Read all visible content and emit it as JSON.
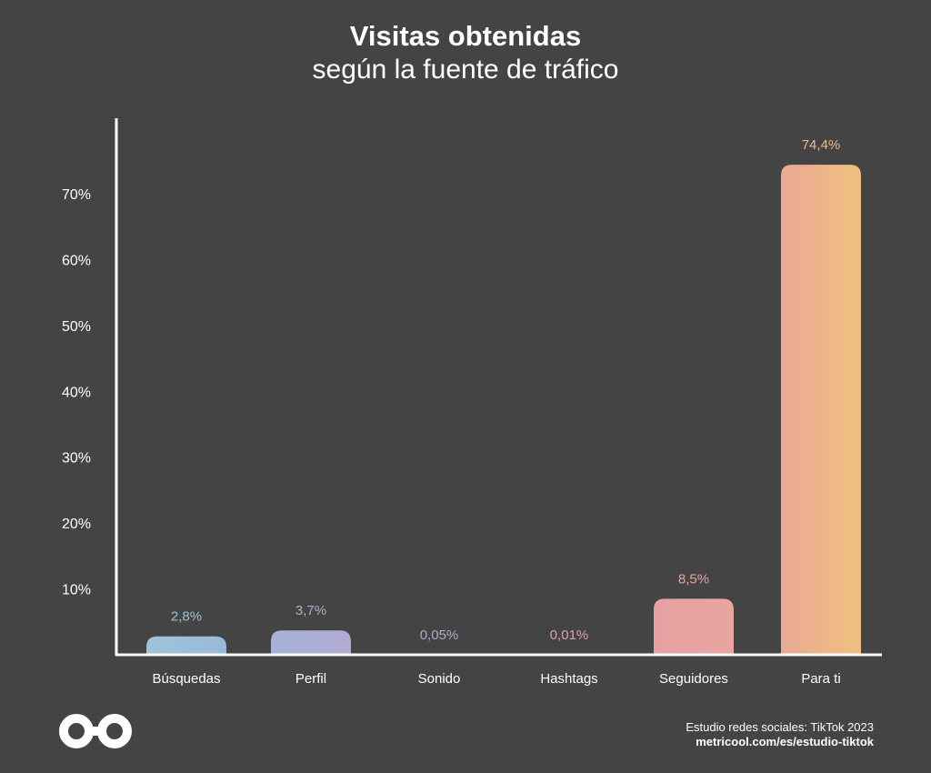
{
  "header": {
    "title": "Visitas obtenidas",
    "subtitle": "según la fuente de tráfico"
  },
  "footer": {
    "line1": "Estudio redes sociales: TikTok 2023",
    "line2": "metricool.com/es/estudio-tiktok"
  },
  "colors": {
    "background": "#444444",
    "axis": "#ffffff",
    "tick_text": "#ffffff"
  },
  "chart_data": {
    "type": "bar",
    "categories": [
      "Búsquedas",
      "Perfil",
      "Sonido",
      "Hashtags",
      "Seguidores",
      "Para ti"
    ],
    "values": [
      2.8,
      3.7,
      0.05,
      0.01,
      8.5,
      74.4
    ],
    "data_labels": [
      "2,8%",
      "3,7%",
      "0,05%",
      "0,01%",
      "8,5%",
      "74,4%"
    ],
    "bar_colors": [
      [
        "#9ec4db",
        "#9ab9d9"
      ],
      [
        "#a4b3d6",
        "#b3abd3"
      ],
      [
        "#b8a6cc",
        "#c3a3c8"
      ],
      [
        "#d19eb5",
        "#d69fb4"
      ],
      [
        "#e7a0a2",
        "#e9a5a0"
      ],
      [
        "#e9a994",
        "#f0c07e"
      ]
    ],
    "label_colors": [
      "#9fc1d6",
      "#a9b2d4",
      "#b5a7cb",
      "#d8a0b8",
      "#e8a3a3",
      "#f0b98a"
    ],
    "y_ticks": [
      10,
      20,
      30,
      40,
      50,
      60,
      70
    ],
    "y_tick_labels": [
      "10%",
      "20%",
      "30%",
      "40%",
      "50%",
      "60%",
      "70%"
    ],
    "ylim": [
      0,
      80
    ],
    "grid": false,
    "title": "Visitas obtenidas",
    "subtitle": "según la fuente de tráfico",
    "xlabel": "",
    "ylabel": ""
  }
}
